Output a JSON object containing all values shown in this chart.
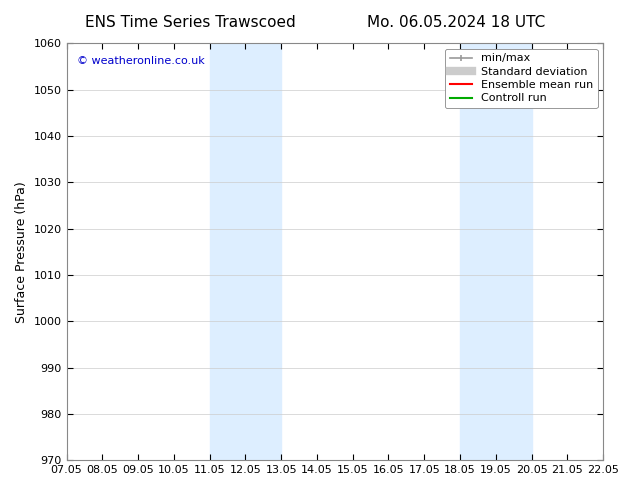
{
  "title_left": "ENS Time Series Trawscoed",
  "title_right": "Mo. 06.05.2024 18 UTC",
  "ylabel": "Surface Pressure (hPa)",
  "ylim": [
    970,
    1060
  ],
  "yticks": [
    970,
    980,
    990,
    1000,
    1010,
    1020,
    1030,
    1040,
    1050,
    1060
  ],
  "xlim": [
    0,
    15
  ],
  "xtick_labels": [
    "07.05",
    "08.05",
    "09.05",
    "10.05",
    "11.05",
    "12.05",
    "13.05",
    "14.05",
    "15.05",
    "16.05",
    "17.05",
    "18.05",
    "19.05",
    "20.05",
    "21.05",
    "22.05"
  ],
  "watermark": "© weatheronline.co.uk",
  "watermark_color": "#0000cc",
  "background_color": "#ffffff",
  "plot_bg_color": "#ffffff",
  "shaded_bands": [
    {
      "x_start": 4,
      "x_end": 6,
      "color": "#ddeeff"
    },
    {
      "x_start": 11,
      "x_end": 13,
      "color": "#ddeeff"
    }
  ],
  "legend_items": [
    {
      "label": "min/max",
      "color": "#aaaaaa",
      "lw": 1.5,
      "style": "|-|"
    },
    {
      "label": "Standard deviation",
      "color": "#cccccc",
      "lw": 6
    },
    {
      "label": "Ensemble mean run",
      "color": "#ff0000",
      "lw": 1.5
    },
    {
      "label": "Controll run",
      "color": "#00aa00",
      "lw": 1.5
    }
  ],
  "title_fontsize": 11,
  "axis_fontsize": 9,
  "tick_fontsize": 8,
  "legend_fontsize": 8
}
